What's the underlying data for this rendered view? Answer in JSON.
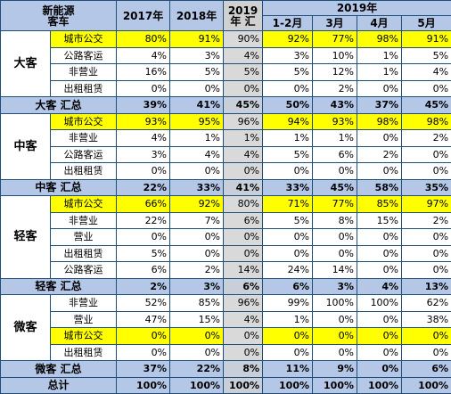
{
  "header": {
    "corner_line1": "新能源",
    "corner_line2": "客车",
    "col_2017": "2017年",
    "col_2018": "2018年",
    "col_2019_line1": "2019",
    "col_2019_line2": "年 汇",
    "group_2019": "2019年",
    "col_jan_feb": "1-2月",
    "col_mar": "3月",
    "col_apr": "4月",
    "col_may": "5月"
  },
  "sections": [
    {
      "category": "大客",
      "rows": [
        {
          "label": "城市公交",
          "highlight": true,
          "values": [
            "80%",
            "91%",
            "90%",
            "92%",
            "77%",
            "98%",
            "91%"
          ]
        },
        {
          "label": "公路客运",
          "highlight": false,
          "values": [
            "4%",
            "3%",
            "4%",
            "3%",
            "10%",
            "1%",
            "5%"
          ]
        },
        {
          "label": "非营业",
          "highlight": false,
          "values": [
            "16%",
            "5%",
            "5%",
            "5%",
            "12%",
            "1%",
            "4%"
          ]
        },
        {
          "label": "出租租赁",
          "highlight": false,
          "values": [
            "0%",
            "0%",
            "0%",
            "0%",
            "2%",
            "0%",
            "0%"
          ]
        }
      ],
      "total": {
        "label": "大客 汇总",
        "values": [
          "39%",
          "41%",
          "45%",
          "50%",
          "43%",
          "37%",
          "45%"
        ]
      }
    },
    {
      "category": "中客",
      "rows": [
        {
          "label": "城市公交",
          "highlight": true,
          "values": [
            "93%",
            "95%",
            "96%",
            "94%",
            "93%",
            "98%",
            "98%"
          ]
        },
        {
          "label": "非营业",
          "highlight": false,
          "values": [
            "4%",
            "1%",
            "1%",
            "1%",
            "1%",
            "0%",
            "2%"
          ]
        },
        {
          "label": "公路客运",
          "highlight": false,
          "values": [
            "3%",
            "4%",
            "4%",
            "5%",
            "6%",
            "2%",
            "0%"
          ]
        },
        {
          "label": "出租租赁",
          "highlight": false,
          "values": [
            "0%",
            "0%",
            "0%",
            "0%",
            "0%",
            "0%",
            "0%"
          ]
        }
      ],
      "total": {
        "label": "中客 汇总",
        "values": [
          "22%",
          "33%",
          "41%",
          "33%",
          "45%",
          "58%",
          "35%"
        ]
      }
    },
    {
      "category": "轻客",
      "rows": [
        {
          "label": "城市公交",
          "highlight": true,
          "values": [
            "66%",
            "92%",
            "80%",
            "71%",
            "77%",
            "85%",
            "97%"
          ]
        },
        {
          "label": "非营业",
          "highlight": false,
          "values": [
            "22%",
            "7%",
            "6%",
            "5%",
            "8%",
            "15%",
            "2%"
          ]
        },
        {
          "label": "营业",
          "highlight": false,
          "values": [
            "0%",
            "0%",
            "0%",
            "0%",
            "0%",
            "0%",
            "0%"
          ]
        },
        {
          "label": "出租租赁",
          "highlight": false,
          "values": [
            "5%",
            "0%",
            "0%",
            "0%",
            "0%",
            "0%",
            "0%"
          ]
        },
        {
          "label": "公路客运",
          "highlight": false,
          "values": [
            "6%",
            "2%",
            "14%",
            "24%",
            "14%",
            "0%",
            "0%"
          ]
        }
      ],
      "total": {
        "label": "轻客 汇总",
        "values": [
          "2%",
          "3%",
          "6%",
          "6%",
          "3%",
          "4%",
          "13%"
        ]
      }
    },
    {
      "category": "微客",
      "rows": [
        {
          "label": "非营业",
          "highlight": false,
          "values": [
            "52%",
            "85%",
            "96%",
            "99%",
            "100%",
            "100%",
            "62%"
          ]
        },
        {
          "label": "营业",
          "highlight": false,
          "values": [
            "47%",
            "15%",
            "4%",
            "1%",
            "0%",
            "0%",
            "38%"
          ]
        },
        {
          "label": "城市公交",
          "highlight": true,
          "values": [
            "0%",
            "0%",
            "0%",
            "0%",
            "0%",
            "0%",
            "0%"
          ]
        },
        {
          "label": "出租租赁",
          "highlight": false,
          "values": [
            "0%",
            "0%",
            "0%",
            "0%",
            "0%",
            "0%",
            "0%"
          ]
        }
      ],
      "total": {
        "label": "微客 汇总",
        "values": [
          "37%",
          "22%",
          "8%",
          "11%",
          "9%",
          "0%",
          "6%"
        ]
      }
    }
  ],
  "grand_total": {
    "label": "总计",
    "values": [
      "100%",
      "100%",
      "100%",
      "100%",
      "100%",
      "100%",
      "100%"
    ]
  }
}
